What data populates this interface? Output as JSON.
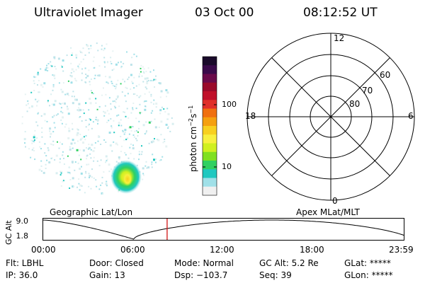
{
  "header": {
    "title": "Ultraviolet Imager",
    "date": "03 Oct 00",
    "time": "08:12:52 UT"
  },
  "colorbar": {
    "unit_label": "photon cm",
    "unit_exp1": "−2",
    "unit_s": "s",
    "unit_exp2": "−1",
    "tick_100": "100",
    "tick_10": "10",
    "colors": [
      "#1a0a2a",
      "#3a0a4a",
      "#6a0a4a",
      "#9a0a2a",
      "#c0102a",
      "#e0302a",
      "#f07010",
      "#f5a010",
      "#f8d020",
      "#f8f040",
      "#d0f020",
      "#80e020",
      "#30d060",
      "#20c8c0",
      "#a0e0e8",
      "#f0f0f0"
    ]
  },
  "polar": {
    "label_12": "12",
    "label_0": "0",
    "label_18": "18",
    "label_6": "6",
    "label_60": "60",
    "label_70": "70",
    "label_80": "80"
  },
  "timeline": {
    "left_title": "Geographic Lat/Lon",
    "right_title": "Apex MLat/MLT",
    "yaxis_label": "GC Alt",
    "y_top": "9.0",
    "y_bottom": "1.8",
    "ticks": [
      "00:00",
      "06:00",
      "12:00",
      "18:00",
      "23:59"
    ],
    "current_time_fraction": 0.343,
    "marker_color": "#cc0000"
  },
  "info": {
    "flt": "Flt: LBHL",
    "ip": "IP: 36.0",
    "door": "Door: Closed",
    "gain": "Gain: 13",
    "mode": "Mode: Normal",
    "dsp": "Dsp: −103.7",
    "gcalt": "GC Alt: 5.2 Re",
    "seq": "Seq: 39",
    "glat": "GLat: *****",
    "glon": "GLon: *****"
  }
}
